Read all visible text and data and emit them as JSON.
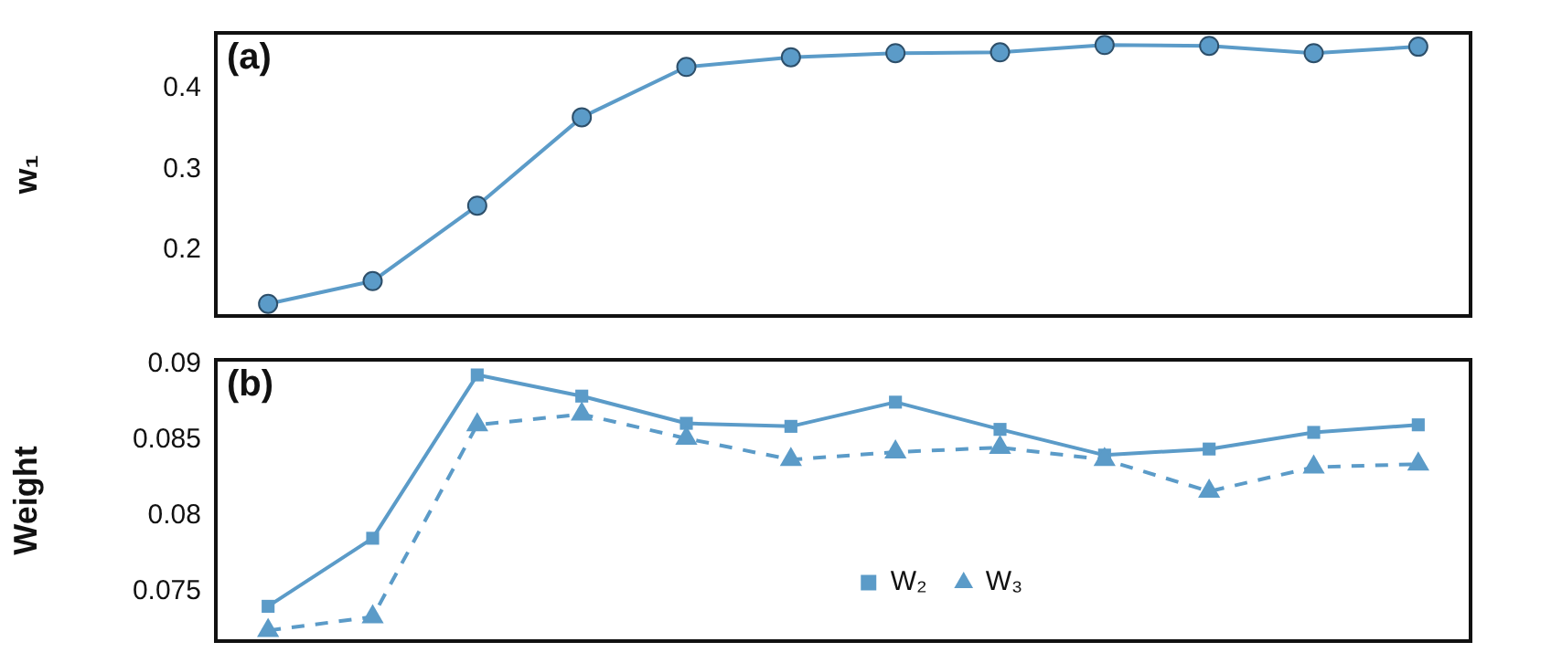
{
  "chart_data": [
    {
      "type": "line",
      "ylabel": "w₁",
      "annotations": [
        "(a)"
      ],
      "categories": [
        null,
        null,
        null,
        null,
        null,
        null,
        null,
        null,
        null,
        null,
        null,
        null
      ],
      "series": [
        {
          "color": "#5b9bc8",
          "marker": "circle",
          "values": [
            0.134,
            0.162,
            0.255,
            0.364,
            0.426,
            0.438,
            0.443,
            0.444,
            0.453,
            0.452,
            0.443,
            0.451
          ]
        }
      ],
      "ylim": [
        0.119,
        0.468
      ],
      "yticks": [
        0.2,
        0.3,
        0.4
      ],
      "grid": false,
      "legend": false,
      "tick_labels": "y",
      "line_style": "solid"
    },
    {
      "type": "line",
      "ylabel": "Weight",
      "annotations": [
        "(b)"
      ],
      "categories": [
        null,
        null,
        null,
        null,
        null,
        null,
        null,
        null,
        null,
        null,
        null,
        null
      ],
      "series": [
        {
          "name": "W₂",
          "color": "#5b9bc8",
          "marker": "square",
          "line_style": "solid",
          "values": [
            0.074,
            0.0785,
            0.0893,
            0.0879,
            0.0861,
            0.0859,
            0.0875,
            0.0857,
            0.084,
            0.0844,
            0.0855,
            0.086
          ]
        },
        {
          "name": "W₃",
          "color": "#5b9bc8",
          "marker": "triangle",
          "line_style": "dashed",
          "values": [
            0.0724,
            0.0733,
            0.086,
            0.0867,
            0.0851,
            0.0837,
            0.0842,
            0.0845,
            0.0837,
            0.0816,
            0.0832,
            0.0834
          ]
        }
      ],
      "ylim": [
        0.0717,
        0.0903
      ],
      "yticks": [
        0.075,
        0.08,
        0.085,
        0.09
      ],
      "grid": false,
      "legend": "bottom",
      "tick_labels": "y"
    }
  ]
}
